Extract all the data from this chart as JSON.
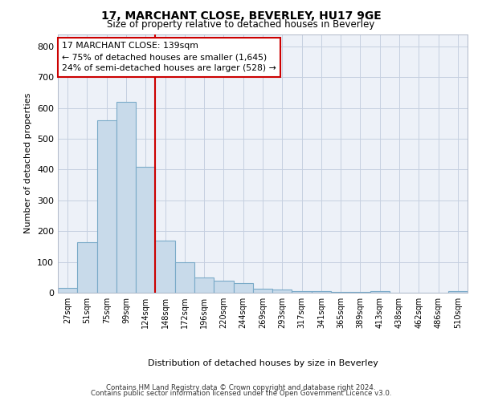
{
  "title": "17, MARCHANT CLOSE, BEVERLEY, HU17 9GE",
  "subtitle": "Size of property relative to detached houses in Beverley",
  "xlabel": "Distribution of detached houses by size in Beverley",
  "ylabel": "Number of detached properties",
  "bar_color": "#c8daea",
  "bar_edge_color": "#7aaac8",
  "grid_color": "#c5cfe0",
  "background_color": "#edf1f8",
  "annotation_box_color": "#cc0000",
  "vline_color": "#cc0000",
  "categories": [
    "27sqm",
    "51sqm",
    "75sqm",
    "99sqm",
    "124sqm",
    "148sqm",
    "172sqm",
    "196sqm",
    "220sqm",
    "244sqm",
    "269sqm",
    "293sqm",
    "317sqm",
    "341sqm",
    "365sqm",
    "389sqm",
    "413sqm",
    "438sqm",
    "462sqm",
    "486sqm",
    "510sqm"
  ],
  "values": [
    15,
    165,
    560,
    620,
    410,
    170,
    100,
    50,
    38,
    30,
    12,
    10,
    5,
    4,
    3,
    2,
    5,
    1,
    0,
    0,
    5
  ],
  "vline_x": 4.5,
  "annotation_text": "17 MARCHANT CLOSE: 139sqm\n← 75% of detached houses are smaller (1,645)\n24% of semi-detached houses are larger (528) →",
  "footer1": "Contains HM Land Registry data © Crown copyright and database right 2024.",
  "footer2": "Contains public sector information licensed under the Open Government Licence v3.0.",
  "ylim": [
    0,
    840
  ],
  "yticks": [
    0,
    100,
    200,
    300,
    400,
    500,
    600,
    700,
    800
  ]
}
